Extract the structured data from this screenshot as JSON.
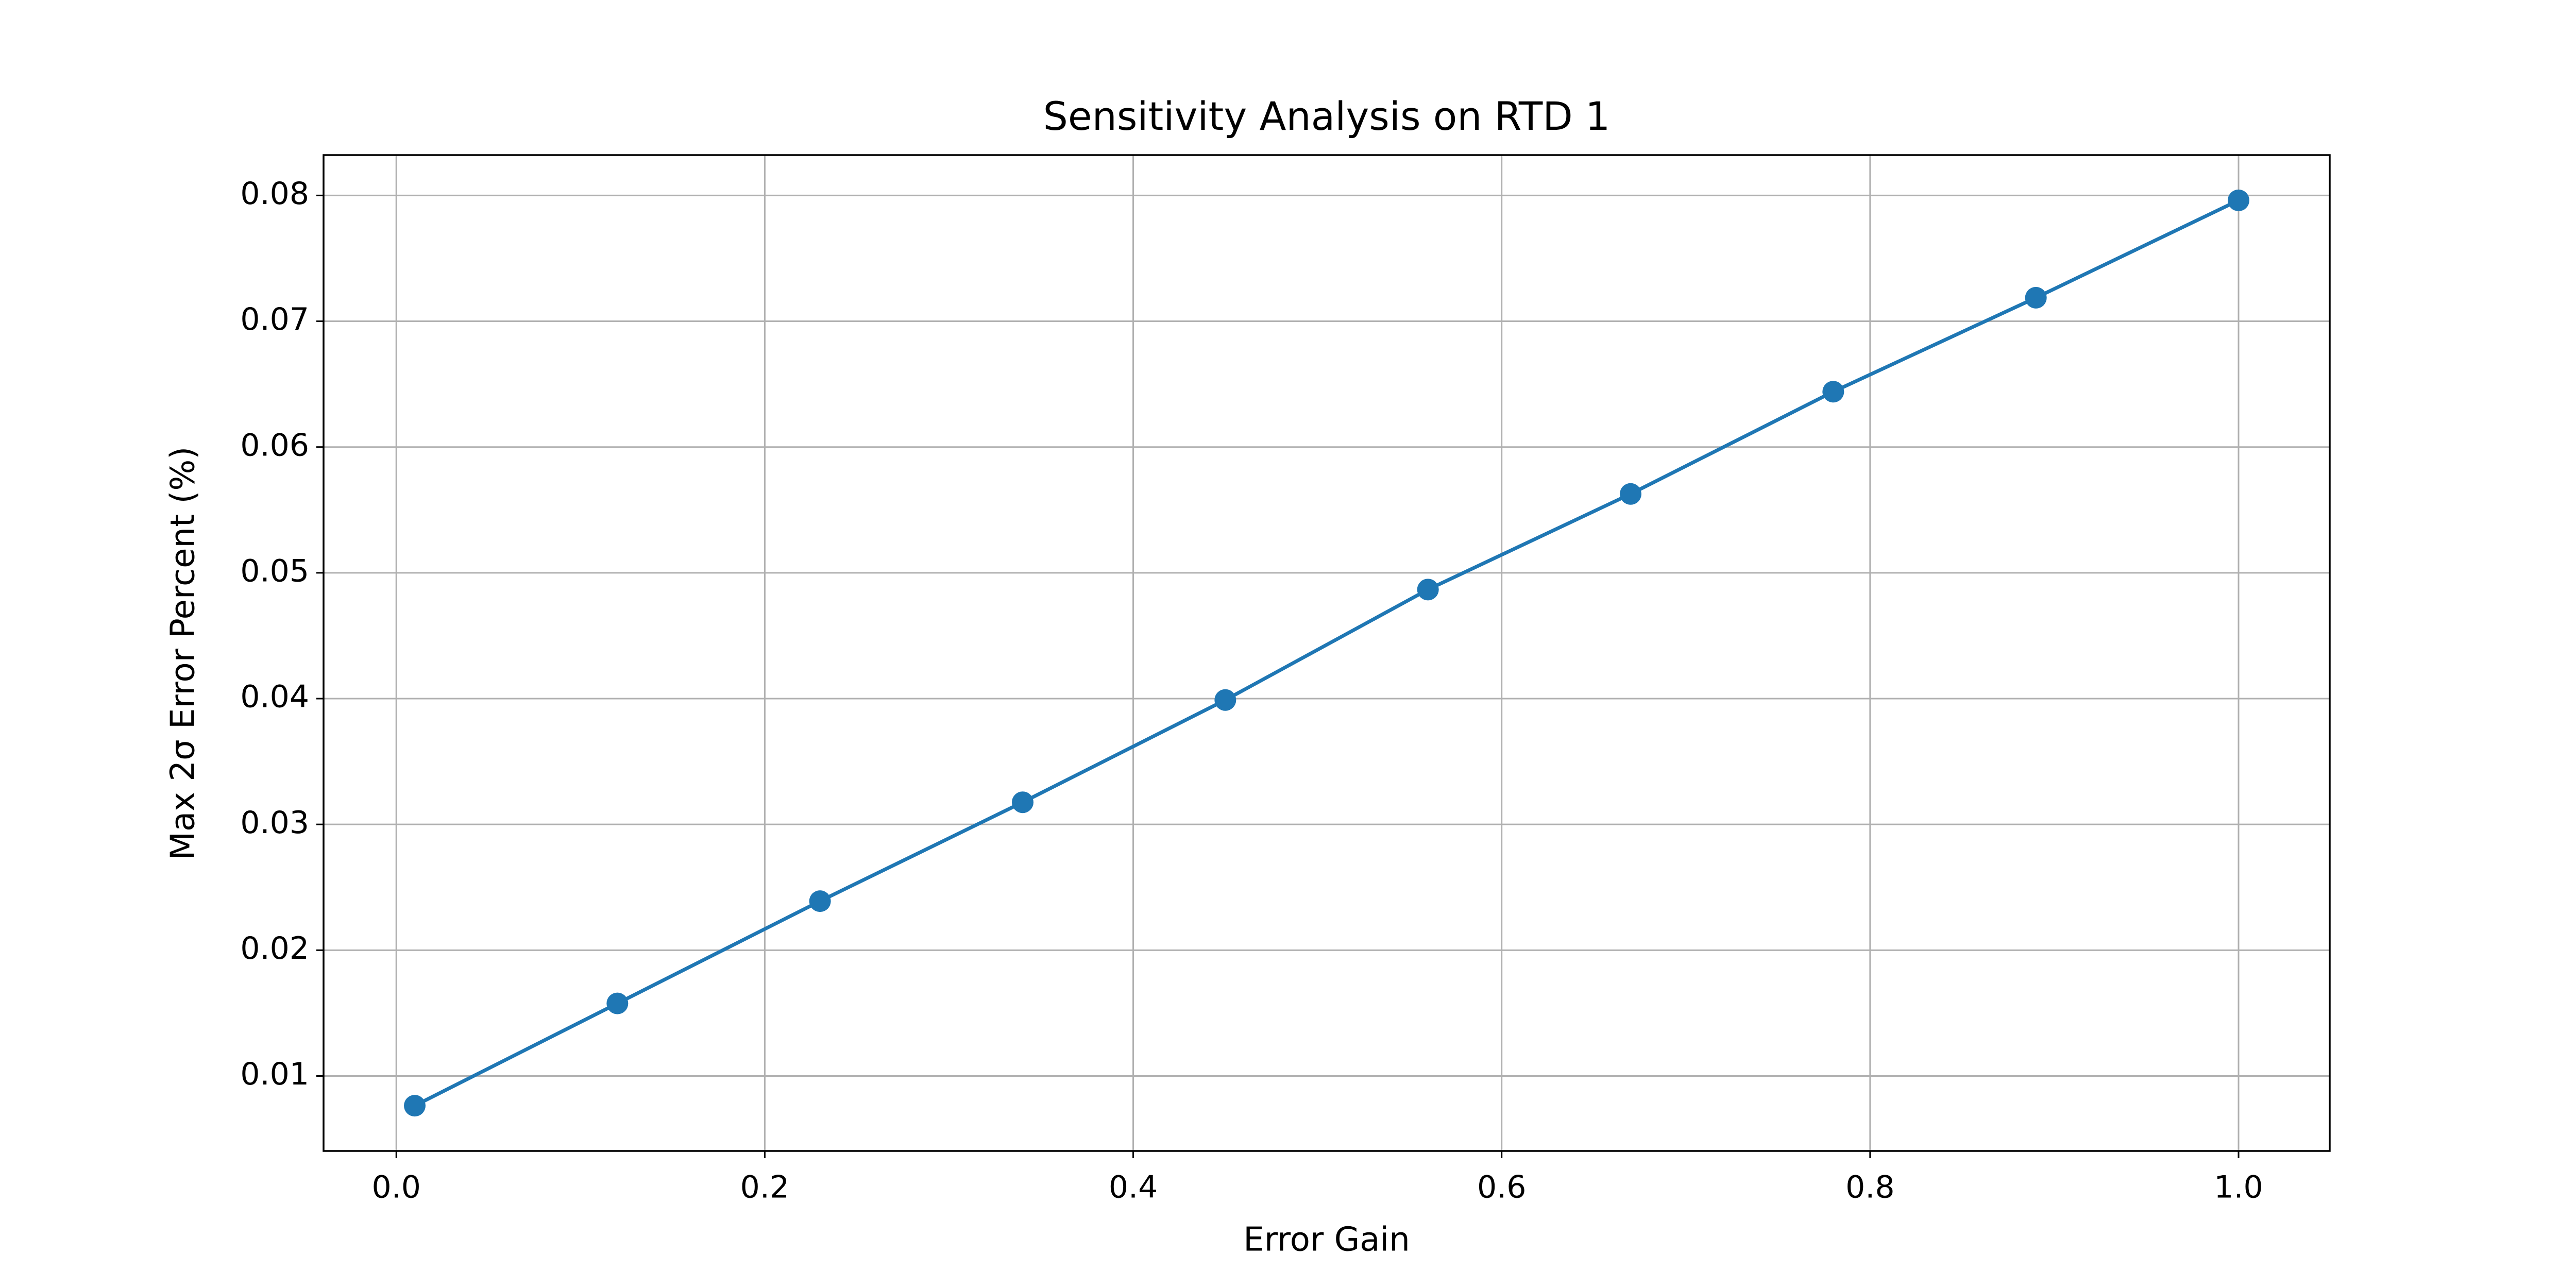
{
  "chart_data": {
    "type": "line",
    "title": "Sensitivity Analysis on RTD 1",
    "x_label": "Error Gain",
    "y_label": "Max 2σ Error Percent (%)",
    "x": [
      0.01,
      0.12,
      0.23,
      0.34,
      0.45,
      0.56,
      0.67,
      0.78,
      0.89,
      1.0
    ],
    "values": [
      0.00764,
      0.01577,
      0.0239,
      0.03176,
      0.03989,
      0.04867,
      0.05627,
      0.0644,
      0.07187,
      0.07961
    ],
    "color": "#1f77b4",
    "xlim": [
      -0.0395,
      1.0495
    ],
    "xticks": [
      {
        "value": 0,
        "label": "0.0"
      },
      0.2,
      0.4,
      0.6,
      0.8,
      {
        "value": 1,
        "label": "1.0"
      }
    ],
    "ylim": [
      0.00404,
      0.08321
    ],
    "yticks": [
      0.01,
      0.02,
      0.03,
      0.04,
      0.05,
      0.06,
      0.07,
      0.08
    ],
    "grid": true,
    "markers": true
  }
}
